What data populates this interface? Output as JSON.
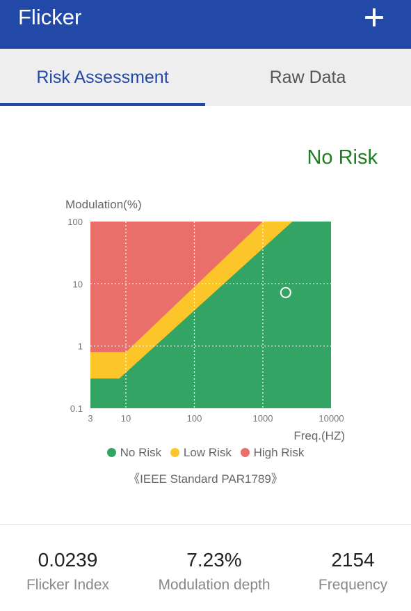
{
  "appbar": {
    "title": "Flicker",
    "add_icon": "plus-icon"
  },
  "tabs": [
    {
      "label": "Risk Assessment",
      "selected": true
    },
    {
      "label": "Raw Data",
      "selected": false
    }
  ],
  "status": {
    "text": "No Risk",
    "color": "#1f7d22"
  },
  "chart_data": {
    "type": "scatter",
    "xlabel": "Freq.(HZ)",
    "ylabel": "Modulation(%)",
    "x_scale": "log",
    "y_scale": "log",
    "xlim": [
      3,
      10000
    ],
    "ylim": [
      0.1,
      100
    ],
    "x_ticks": [
      "3",
      "10",
      "100",
      "1000",
      "10000"
    ],
    "y_ticks": [
      "100",
      "10",
      "1",
      "0.1"
    ],
    "grid": true,
    "point": {
      "x": 2154,
      "y": 7.23
    },
    "zones": [
      {
        "name": "No Risk",
        "color": "#33a463"
      },
      {
        "name": "Low Risk",
        "color": "#fcc52a"
      },
      {
        "name": "High Risk",
        "color": "#ea6f6a"
      }
    ],
    "legend": "bottom"
  },
  "legend": [
    {
      "label": "No Risk",
      "color": "#33a463"
    },
    {
      "label": "Low Risk",
      "color": "#fcc52a"
    },
    {
      "label": "High Risk",
      "color": "#ea6f6a"
    }
  ],
  "standard": "《IEEE Standard PAR1789》",
  "metrics": [
    {
      "value": "0.0239",
      "label": "Flicker Index"
    },
    {
      "value": "7.23%",
      "label": "Modulation depth"
    },
    {
      "value": "2154",
      "label": "Frequency"
    }
  ]
}
